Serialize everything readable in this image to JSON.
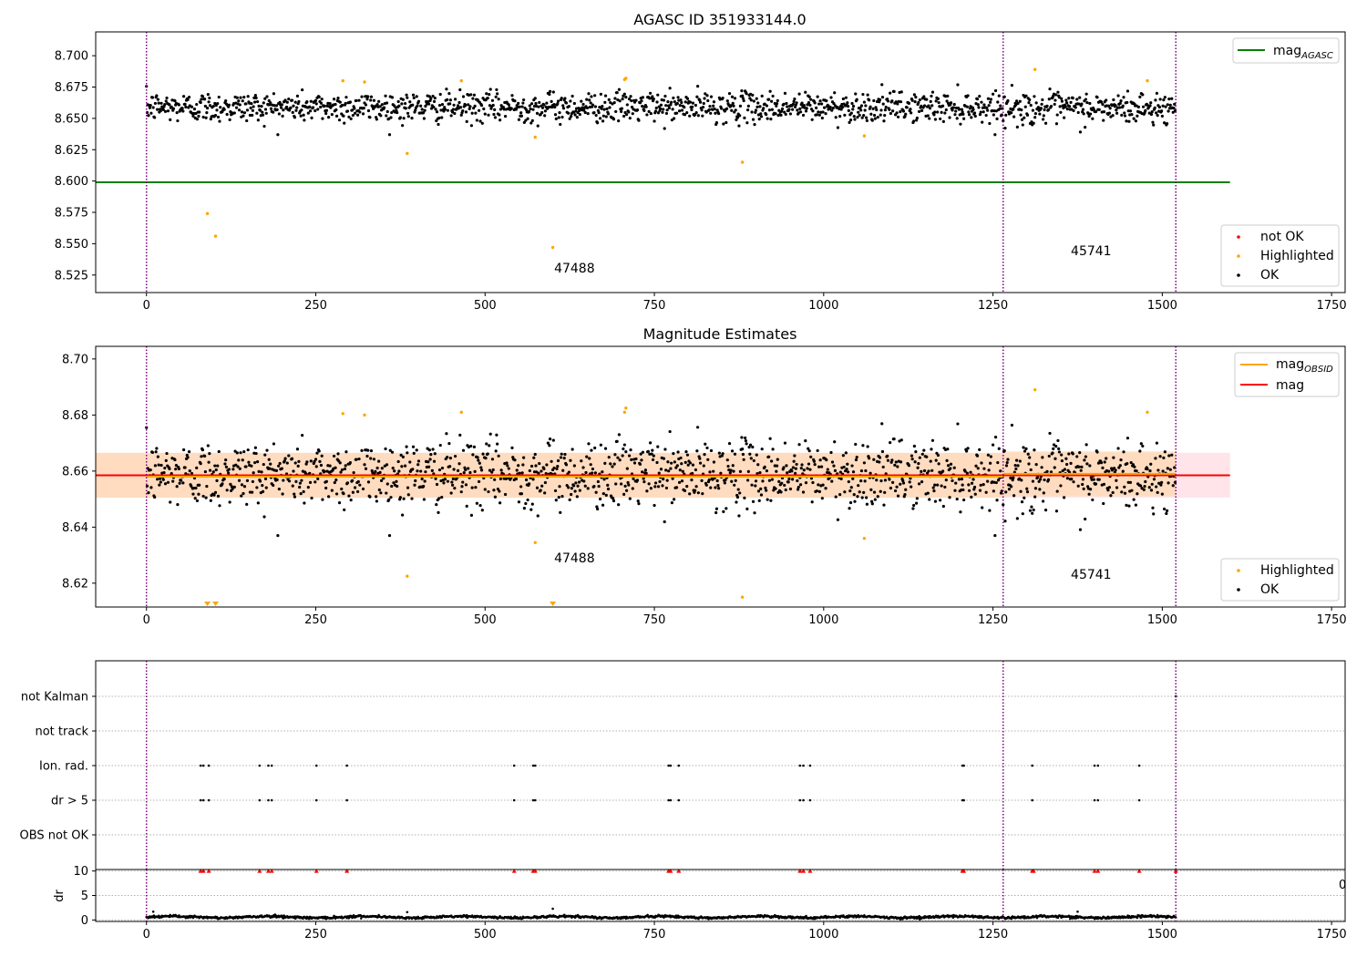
{
  "colors": {
    "ok": "#000000",
    "highlighted": "#ffa500",
    "not_ok": "#ff0000",
    "mag_agasc": "#008000",
    "mag_obsid": "#ffa500",
    "mag": "#ff0000",
    "obs_boundary": "#800080",
    "band_orange": "#ffdab9",
    "band_red": "#ffe0e6"
  },
  "chart_data": [
    {
      "type": "scatter",
      "title": "AGASC ID 351933144.0",
      "xlim": [
        -75,
        1770
      ],
      "ylim": [
        8.511,
        8.719
      ],
      "xticks": [
        0,
        250,
        500,
        750,
        1000,
        1250,
        1500,
        1750
      ],
      "yticks": [
        8.525,
        8.55,
        8.575,
        8.6,
        8.625,
        8.65,
        8.675,
        8.7
      ],
      "ytick_labels": [
        "8.525",
        "8.550",
        "8.575",
        "8.600",
        "8.625",
        "8.650",
        "8.675",
        "8.700"
      ],
      "grid": false,
      "legend_upper": {
        "placement": "top-right",
        "entries": [
          {
            "label": "mag",
            "sub": "AGASC",
            "kind": "line",
            "color": "mag_agasc"
          }
        ]
      },
      "legend_lower": {
        "placement": "bottom-right",
        "entries": [
          {
            "label": "not OK",
            "kind": "dot",
            "color": "not_ok"
          },
          {
            "label": "Highlighted",
            "kind": "dot",
            "color": "highlighted"
          },
          {
            "label": "OK",
            "kind": "dot",
            "color": "ok"
          }
        ]
      },
      "hlines": [
        {
          "name": "mag_AGASC",
          "y": 8.599,
          "x_range": [
            -75,
            1600
          ],
          "color": "mag_agasc"
        }
      ],
      "vlines": [
        0,
        1265,
        1520
      ],
      "annotations": [
        {
          "text": "47488",
          "x": 602,
          "y": 8.527
        },
        {
          "text": "45741",
          "x": 1365,
          "y": 8.541
        }
      ],
      "ok_points": {
        "x_range": [
          0,
          1520
        ],
        "segments": [
          [
            0,
            1265,
            8.659,
            0.0085
          ],
          [
            1265,
            1520,
            8.658,
            0.009
          ]
        ]
      },
      "highlighted_points": [
        [
          90,
          8.574
        ],
        [
          102,
          8.556
        ],
        [
          290,
          8.68
        ],
        [
          322,
          8.679
        ],
        [
          385,
          8.622
        ],
        [
          465,
          8.68
        ],
        [
          574,
          8.635
        ],
        [
          600,
          8.547
        ],
        [
          706,
          8.681
        ],
        [
          708,
          8.682
        ],
        [
          880,
          8.615
        ],
        [
          1060,
          8.636
        ],
        [
          1312,
          8.689
        ],
        [
          1478,
          8.68
        ]
      ]
    },
    {
      "type": "scatter",
      "title": "Magnitude Estimates",
      "xlim": [
        -75,
        1770
      ],
      "ylim": [
        8.6115,
        8.7045
      ],
      "xticks": [
        0,
        250,
        500,
        750,
        1000,
        1250,
        1500,
        1750
      ],
      "yticks": [
        8.62,
        8.64,
        8.66,
        8.68,
        8.7
      ],
      "ytick_labels": [
        "8.62",
        "8.64",
        "8.66",
        "8.68",
        "8.70"
      ],
      "grid": false,
      "legend_upper": {
        "placement": "top-right",
        "entries": [
          {
            "label": "mag",
            "sub": "OBSID",
            "kind": "line",
            "color": "mag_obsid"
          },
          {
            "label": "mag",
            "sub": "",
            "kind": "line",
            "color": "mag"
          }
        ]
      },
      "legend_lower": {
        "placement": "bottom-right",
        "entries": [
          {
            "label": "Highlighted",
            "kind": "dot",
            "color": "highlighted"
          },
          {
            "label": "OK",
            "kind": "dot",
            "color": "ok"
          }
        ]
      },
      "hlines": [
        {
          "name": "mag",
          "y": 8.6585,
          "x_range": [
            -75,
            1600
          ],
          "color": "mag"
        },
        {
          "name": "mag_OBSID_1",
          "y": 8.658,
          "x_range": [
            0,
            1265
          ],
          "color": "mag_obsid"
        },
        {
          "name": "mag_OBSID_2",
          "y": 8.659,
          "x_range": [
            1265,
            1520
          ],
          "color": "mag_obsid"
        }
      ],
      "bands": [
        {
          "x_range": [
            -75,
            1600
          ],
          "y_range": [
            8.6505,
            8.6665
          ],
          "color": "band_red"
        },
        {
          "x_range": [
            -75,
            1265
          ],
          "y_range": [
            8.6505,
            8.6665
          ],
          "color": "band_orange"
        },
        {
          "x_range": [
            1265,
            1520
          ],
          "y_range": [
            8.651,
            8.667
          ],
          "color": "band_orange"
        }
      ],
      "vlines": [
        0,
        1265,
        1520
      ],
      "annotations": [
        {
          "text": "47488",
          "x": 602,
          "y": 8.6275
        },
        {
          "text": "45741",
          "x": 1365,
          "y": 8.6215
        }
      ],
      "ok_points": {
        "x_range": [
          0,
          1520
        ],
        "segments": [
          [
            0,
            1265,
            8.659,
            0.0085
          ],
          [
            1265,
            1520,
            8.658,
            0.009
          ]
        ]
      },
      "highlighted_points": [
        [
          290,
          8.6805
        ],
        [
          322,
          8.68
        ],
        [
          385,
          8.6225
        ],
        [
          465,
          8.681
        ],
        [
          574,
          8.6345
        ],
        [
          706,
          8.681
        ],
        [
          708,
          8.6825
        ],
        [
          880,
          8.615
        ],
        [
          1060,
          8.636
        ],
        [
          1312,
          8.689
        ],
        [
          1478,
          8.681
        ]
      ],
      "offscale_markers": [
        90,
        102,
        600
      ]
    },
    {
      "type": "scatter",
      "title": "",
      "xlim": [
        -75,
        1770
      ],
      "flag_rows": [
        "not Kalman",
        "not track",
        "Ion. rad.",
        "dr > 5",
        "OBS not OK"
      ],
      "flag_points": {
        "not Kalman": [
          1520
        ],
        "not track": [],
        "Ion. rad.": [
          80,
          84,
          92,
          167,
          180,
          185,
          251,
          296,
          543,
          571,
          574,
          771,
          774,
          786,
          965,
          970,
          980,
          1205,
          1207,
          1308,
          1400,
          1405,
          1466
        ],
        "dr > 5": [
          80,
          84,
          92,
          167,
          180,
          185,
          251,
          296,
          543,
          571,
          574,
          771,
          774,
          786,
          965,
          970,
          980,
          1205,
          1207,
          1308,
          1400,
          1405,
          1466
        ],
        "OBS not OK": []
      },
      "vlines": [
        0,
        1265,
        1520
      ],
      "dr": {
        "ylabel": "dr",
        "ylim": [
          -0.3,
          10.3
        ],
        "yticks": [
          0,
          5,
          10
        ],
        "xticks": [
          0,
          250,
          500,
          750,
          1000,
          1250,
          1500,
          1750
        ],
        "base": 0.6,
        "clip_value": 10,
        "high_points": [
          80,
          84,
          92,
          167,
          180,
          185,
          251,
          296,
          543,
          571,
          574,
          771,
          774,
          786,
          965,
          970,
          980,
          1205,
          1207,
          1308,
          1310,
          1400,
          1405,
          1466,
          1520
        ],
        "outliers": [
          [
            10,
            1.7
          ],
          [
            385,
            1.6
          ],
          [
            600,
            2.3
          ],
          [
            1375,
            1.7
          ]
        ],
        "overlap_label": "0"
      }
    }
  ]
}
